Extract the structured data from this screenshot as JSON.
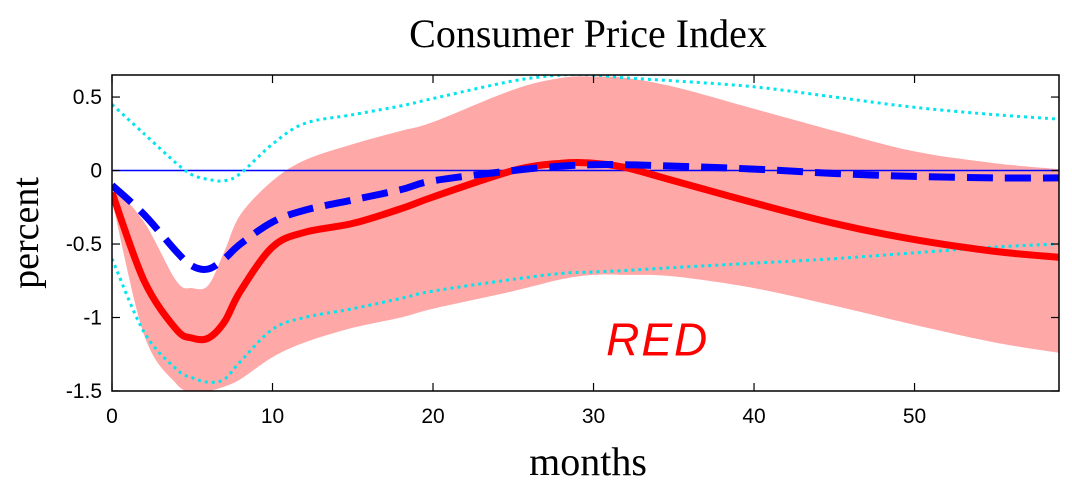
{
  "chart_data": {
    "type": "line",
    "title": "Consumer Price Index",
    "xlabel": "months",
    "ylabel": "percent",
    "xlim": [
      0,
      59
    ],
    "ylim": [
      -1.5,
      0.65
    ],
    "xticks": [
      0,
      10,
      20,
      30,
      40,
      50
    ],
    "xtick_labels": [
      "0",
      "10",
      "20",
      "30",
      "40",
      "50"
    ],
    "yticks": [
      -1.5,
      -1,
      -0.5,
      0,
      0.5
    ],
    "ytick_labels": [
      "-1.5",
      "-1",
      "-0.5",
      "0",
      "0.5"
    ],
    "grid": false,
    "legend": "none",
    "x": [
      0,
      2,
      4,
      5,
      6,
      7,
      8,
      10,
      12,
      15,
      18,
      20,
      25,
      28,
      30,
      32,
      35,
      40,
      45,
      50,
      55,
      59
    ],
    "series": [
      {
        "style": "solid-red-thick",
        "color": "#ff0000",
        "values": [
          -0.15,
          -0.75,
          -1.08,
          -1.14,
          -1.14,
          -1.03,
          -0.82,
          -0.52,
          -0.42,
          -0.36,
          -0.26,
          -0.18,
          0.0,
          0.05,
          0.05,
          0.02,
          -0.07,
          -0.22,
          -0.36,
          -0.47,
          -0.55,
          -0.59
        ]
      },
      {
        "style": "dashed-blue-thick",
        "color": "#0000ff",
        "values": [
          -0.1,
          -0.3,
          -0.55,
          -0.65,
          -0.67,
          -0.6,
          -0.5,
          -0.35,
          -0.27,
          -0.2,
          -0.13,
          -0.07,
          0.0,
          0.03,
          0.04,
          0.04,
          0.03,
          0.01,
          -0.02,
          -0.04,
          -0.05,
          -0.05
        ]
      },
      {
        "style": "dotted-cyan-upper",
        "color": "#00e5ee",
        "values": [
          0.45,
          0.25,
          0.05,
          -0.03,
          -0.06,
          -0.07,
          -0.02,
          0.18,
          0.32,
          0.38,
          0.44,
          0.49,
          0.61,
          0.65,
          0.65,
          0.63,
          0.61,
          0.57,
          0.5,
          0.43,
          0.38,
          0.35
        ]
      },
      {
        "style": "dotted-cyan-lower",
        "color": "#00e5ee",
        "values": [
          -0.6,
          -1.1,
          -1.35,
          -1.41,
          -1.44,
          -1.42,
          -1.3,
          -1.08,
          -1.0,
          -0.94,
          -0.87,
          -0.82,
          -0.74,
          -0.7,
          -0.69,
          -0.68,
          -0.66,
          -0.63,
          -0.6,
          -0.56,
          -0.52,
          -0.5
        ]
      }
    ],
    "band": {
      "color": "#ffa8a8",
      "upper": [
        -0.1,
        -0.35,
        -0.75,
        -0.8,
        -0.78,
        -0.55,
        -0.3,
        -0.07,
        0.07,
        0.18,
        0.27,
        0.33,
        0.55,
        0.63,
        0.64,
        0.63,
        0.57,
        0.42,
        0.27,
        0.13,
        0.05,
        0.01
      ],
      "lower": [
        -0.2,
        -1.12,
        -1.45,
        -1.5,
        -1.5,
        -1.47,
        -1.42,
        -1.27,
        -1.17,
        -1.07,
        -1.0,
        -0.94,
        -0.82,
        -0.74,
        -0.71,
        -0.71,
        -0.72,
        -0.8,
        -0.92,
        -1.05,
        -1.17,
        -1.24
      ]
    },
    "zero_line_color": "#0000ff",
    "annotation": {
      "text": "RED",
      "x": 34,
      "y": -1.15,
      "color": "#ff0000"
    }
  }
}
